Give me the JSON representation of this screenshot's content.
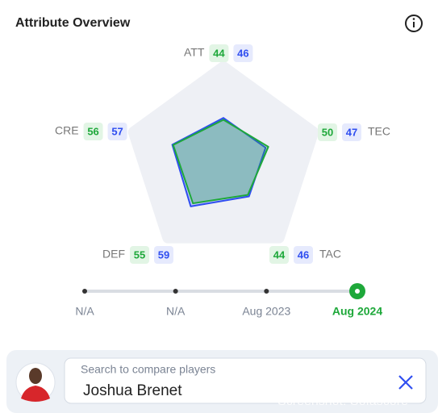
{
  "header": {
    "title": "Attribute Overview"
  },
  "chart_data": {
    "type": "radar",
    "categories": [
      "ATT",
      "TEC",
      "TAC",
      "DEF",
      "CRE"
    ],
    "rlim": [
      0,
      100
    ],
    "series": [
      {
        "color": "#2f4ef0",
        "label_bg": "#e6eafd",
        "values": [
          46,
          47,
          46,
          59,
          57
        ]
      },
      {
        "color": "#1ea83a",
        "label_bg": "#e2f5e5",
        "values": [
          44,
          50,
          44,
          55,
          56
        ]
      }
    ]
  },
  "timeline": {
    "labels": [
      "N/A",
      "N/A",
      "Aug 2023",
      "Aug 2024"
    ],
    "active_index": 3
  },
  "search": {
    "placeholder": "Search to compare players",
    "player": "Joshua Brenet"
  },
  "watermark": "Screenshot: Sofascore"
}
